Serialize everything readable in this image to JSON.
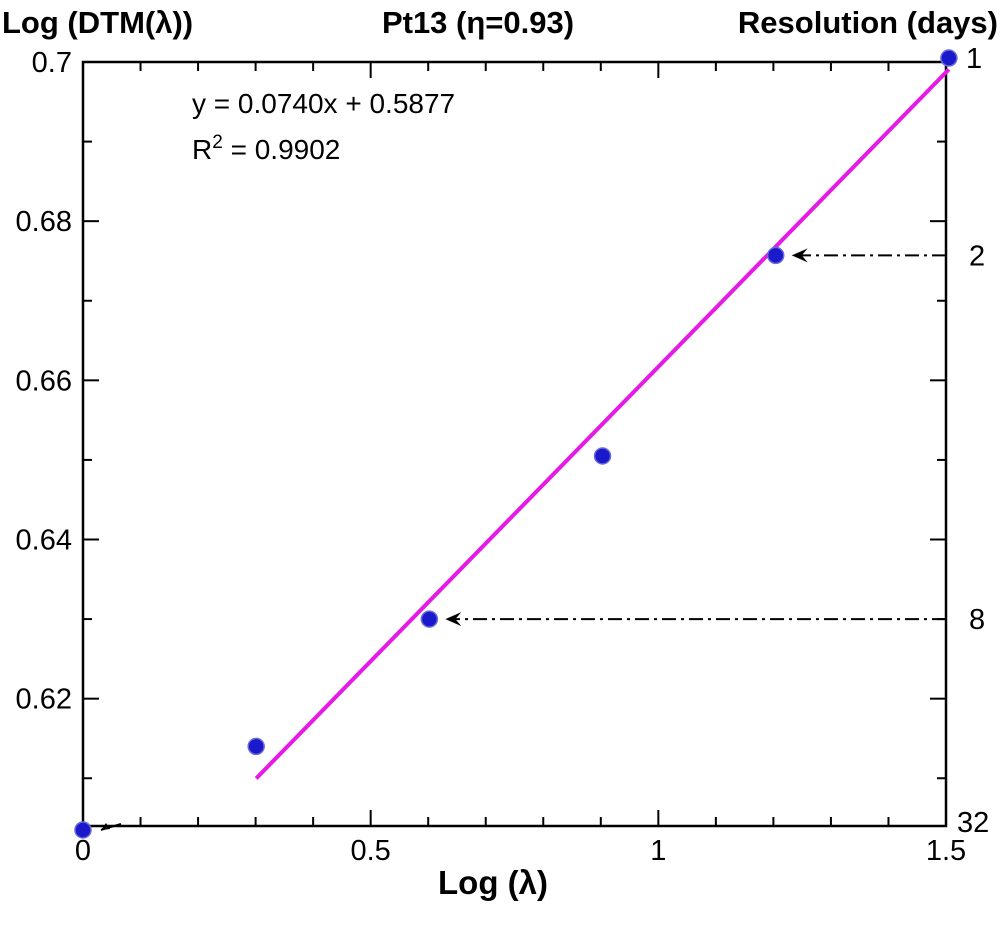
{
  "header": {
    "left_title": "Log (DTM(λ))",
    "center_title": "Pt13 (η=0.93)",
    "right_title": "Resolution (days)"
  },
  "chart_data": {
    "type": "scatter",
    "xlabel": "Log (λ)",
    "ylabel": "Log (DTM(λ))",
    "y2label": "Resolution (days)",
    "xlim": [
      0,
      1.5
    ],
    "ylim": [
      0.604,
      0.7
    ],
    "x_ticks": [
      0,
      0.5,
      1,
      1.5
    ],
    "x_tick_labels": [
      "0",
      "0.5",
      "1",
      "1.5"
    ],
    "y_ticks": [
      0.62,
      0.64,
      0.66,
      0.68,
      0.7
    ],
    "y_tick_labels": [
      "0.62",
      "0.64",
      "0.66",
      "0.68",
      "0.7"
    ],
    "grid": false,
    "series": [
      {
        "color": "#1a1acc",
        "x": [
          0,
          0.301,
          0.602,
          0.903,
          1.204,
          1.505
        ],
        "y": [
          0.6035,
          0.614,
          0.63,
          0.6505,
          0.6757,
          0.7005
        ]
      }
    ],
    "trendline": {
      "equation": "y = 0.0740x + 0.5877",
      "r2_prefix": "R",
      "r2_sup": "2",
      "r2_suffix": " = 0.9902",
      "slope": 0.074,
      "intercept": 0.5877,
      "x_range": [
        0.301,
        1.505
      ],
      "color": "#e619e6"
    },
    "right_axis_labels": [
      {
        "label": "1",
        "y": 0.7005
      },
      {
        "label": "2",
        "y": 0.6757
      },
      {
        "label": "8",
        "y": 0.63
      },
      {
        "label": "32",
        "y": 0.6045
      }
    ],
    "arrows": [
      {
        "from_label": "2",
        "to_x": 1.204,
        "y": 0.6757
      },
      {
        "from_label": "8",
        "to_x": 0.602,
        "y": 0.63
      },
      {
        "from_label": "32",
        "to_x": 0.0,
        "y": 0.6035
      }
    ]
  }
}
